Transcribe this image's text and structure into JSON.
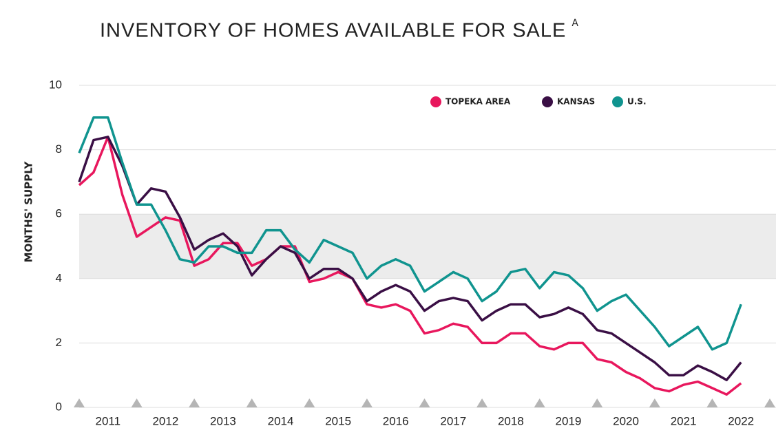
{
  "chart_data": {
    "type": "line",
    "title": "INVENTORY OF HOMES AVAILABLE FOR SALE",
    "title_superscript": "A",
    "y_label": "MONTHS' SUPPLY",
    "x": [
      2011,
      2011.25,
      2011.5,
      2011.75,
      2012,
      2012.25,
      2012.5,
      2012.75,
      2013,
      2013.25,
      2013.5,
      2013.75,
      2014,
      2014.25,
      2014.5,
      2014.75,
      2015,
      2015.25,
      2015.5,
      2015.75,
      2016,
      2016.25,
      2016.5,
      2016.75,
      2017,
      2017.25,
      2017.5,
      2017.75,
      2018,
      2018.25,
      2018.5,
      2018.75,
      2019,
      2019.25,
      2019.5,
      2019.75,
      2020,
      2020.25,
      2020.5,
      2020.75,
      2021,
      2021.25,
      2021.5,
      2021.75,
      2022,
      2022.25,
      2022.5
    ],
    "series": [
      {
        "name": "TOPEKA AREA",
        "color": "#e8175d",
        "values": [
          6.9,
          7.3,
          8.4,
          6.6,
          5.3,
          5.6,
          5.9,
          5.8,
          4.4,
          4.6,
          5.1,
          5.1,
          4.4,
          4.6,
          5.0,
          5.0,
          3.9,
          4.0,
          4.2,
          4.0,
          3.2,
          3.1,
          3.2,
          3.0,
          2.3,
          2.4,
          2.6,
          2.5,
          2.0,
          2.0,
          2.3,
          2.3,
          1.9,
          1.8,
          2.0,
          2.0,
          1.5,
          1.4,
          1.1,
          0.9,
          0.6,
          0.5,
          0.7,
          0.8,
          0.6,
          0.4,
          0.75
        ]
      },
      {
        "name": "KANSAS",
        "color": "#3a0f45",
        "values": [
          7.0,
          8.3,
          8.4,
          7.5,
          6.3,
          6.8,
          6.7,
          5.9,
          4.9,
          5.2,
          5.4,
          5.0,
          4.1,
          4.6,
          5.0,
          4.8,
          4.0,
          4.3,
          4.3,
          4.0,
          3.3,
          3.6,
          3.8,
          3.6,
          3.0,
          3.3,
          3.4,
          3.3,
          2.7,
          3.0,
          3.2,
          3.2,
          2.8,
          2.9,
          3.1,
          2.9,
          2.4,
          2.3,
          2.0,
          1.7,
          1.4,
          1.0,
          1.0,
          1.3,
          1.1,
          0.85,
          1.4
        ]
      },
      {
        "name": "U.S.",
        "color": "#10948f",
        "values": [
          7.9,
          9.0,
          9.0,
          7.6,
          6.3,
          6.3,
          5.5,
          4.6,
          4.5,
          5.0,
          5.0,
          4.8,
          4.8,
          5.5,
          5.5,
          4.9,
          4.5,
          5.2,
          5.0,
          4.8,
          4.0,
          4.4,
          4.6,
          4.4,
          3.6,
          3.9,
          4.2,
          4.0,
          3.3,
          3.6,
          4.2,
          4.3,
          3.7,
          4.2,
          4.1,
          3.7,
          3.0,
          3.3,
          3.5,
          3.0,
          2.5,
          1.9,
          2.2,
          2.5,
          1.8,
          2.0,
          3.2
        ]
      }
    ],
    "xlim": [
      2011,
      2023
    ],
    "xticks": [
      {
        "value": 2011.5,
        "label": "2011"
      },
      {
        "value": 2012.5,
        "label": "2012"
      },
      {
        "value": 2013.5,
        "label": "2013"
      },
      {
        "value": 2014.5,
        "label": "2014"
      },
      {
        "value": 2015.5,
        "label": "2015"
      },
      {
        "value": 2016.5,
        "label": "2016"
      },
      {
        "value": 2017.5,
        "label": "2017"
      },
      {
        "value": 2018.5,
        "label": "2018"
      },
      {
        "value": 2019.5,
        "label": "2019"
      },
      {
        "value": 2020.5,
        "label": "2020"
      },
      {
        "value": 2021.5,
        "label": "2021"
      },
      {
        "value": 2022.5,
        "label": "2022"
      }
    ],
    "ylim": [
      0,
      10
    ],
    "yticks": [
      0,
      2,
      4,
      6,
      8,
      10
    ],
    "shaded_band": [
      4,
      6
    ],
    "grid": true,
    "legend": "top-right"
  }
}
